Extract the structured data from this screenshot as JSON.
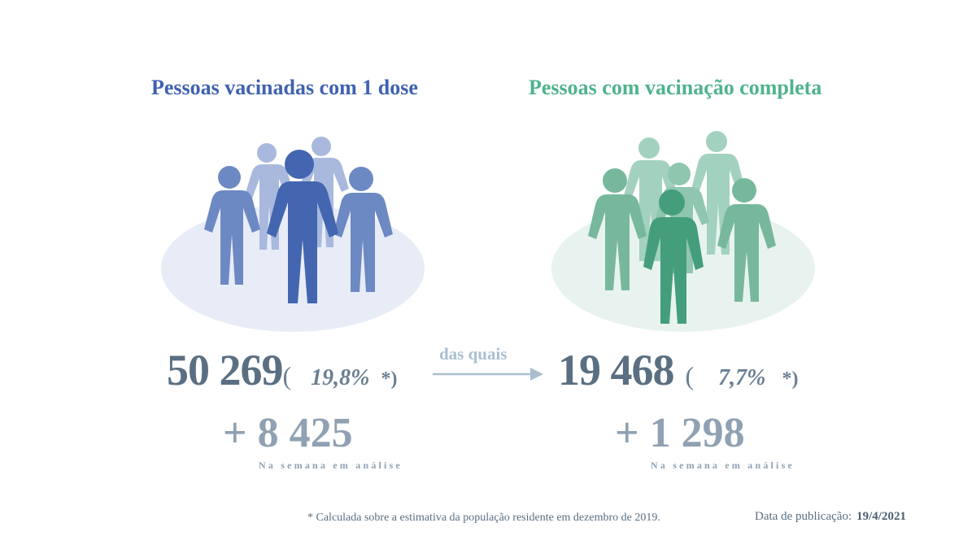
{
  "left_panel": {
    "title": "Pessoas vacinadas com 1 dose",
    "total": "50 269",
    "paren_open": "(",
    "percent": "19,8%",
    "asterisk": "*)",
    "weekly_increase": "+ 8 425",
    "weekly_label": "Na semana em análise",
    "colors": {
      "title": "#3f62b0",
      "ellipse": "#e8ecf6",
      "figure_light": "#a9b9dd",
      "figure_mid": "#6d89c3",
      "figure_dark": "#4466b1"
    }
  },
  "connector": {
    "label": "das quais"
  },
  "right_panel": {
    "title": "Pessoas com vacinação completa",
    "total": "19 468",
    "paren_open": "(",
    "percent": "7,7%",
    "asterisk": "*)",
    "weekly_increase": "+ 1 298",
    "weekly_label": "Na semana em análise",
    "colors": {
      "title": "#4fb38c",
      "ellipse": "#e8f3ef",
      "figure_light": "#a3d1bf",
      "figure_mid": "#77b89d",
      "figure_dark": "#459e7b"
    }
  },
  "footer": {
    "footnote": "* Calculada sobre a estimativa da população residente em dezembro de 2019.",
    "publication_label": "Data de publicação:",
    "publication_date": "19/4/2021"
  }
}
